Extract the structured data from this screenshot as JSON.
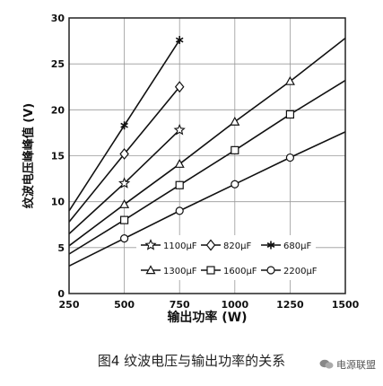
{
  "chart_data": {
    "type": "line",
    "xlabel": "输出功率 (W)",
    "ylabel": "纹波电压峰峰值 (V)",
    "xlim": [
      250,
      1500
    ],
    "ylim": [
      0,
      30
    ],
    "xticks": [
      250,
      500,
      750,
      1000,
      1250,
      1500
    ],
    "yticks": [
      0,
      5,
      10,
      15,
      20,
      25,
      30
    ],
    "grid": true,
    "legend_placement": "bottom-right",
    "series": [
      {
        "name": "1100μF",
        "marker": "star",
        "points": [
          [
            250,
            6.5
          ],
          [
            500,
            12.0
          ],
          [
            750,
            17.8
          ]
        ]
      },
      {
        "name": "820μF",
        "marker": "diamond",
        "points": [
          [
            250,
            7.8
          ],
          [
            500,
            15.2
          ],
          [
            750,
            22.5
          ]
        ]
      },
      {
        "name": "680μF",
        "marker": "asterisk",
        "points": [
          [
            250,
            9.0
          ],
          [
            500,
            18.3
          ],
          [
            750,
            27.6
          ]
        ]
      },
      {
        "name": "1300μF",
        "marker": "triangle",
        "points": [
          [
            250,
            5.2
          ],
          [
            500,
            9.7
          ],
          [
            750,
            14.1
          ],
          [
            1000,
            18.7
          ],
          [
            1250,
            23.1
          ],
          [
            1500,
            27.8
          ]
        ]
      },
      {
        "name": "1600μF",
        "marker": "square",
        "points": [
          [
            250,
            4.3
          ],
          [
            500,
            8.0
          ],
          [
            750,
            11.8
          ],
          [
            1000,
            15.6
          ],
          [
            1250,
            19.5
          ],
          [
            1500,
            23.2
          ]
        ]
      },
      {
        "name": "2200μF",
        "marker": "circle",
        "points": [
          [
            250,
            3.0
          ],
          [
            500,
            6.0
          ],
          [
            750,
            9.0
          ],
          [
            1000,
            11.9
          ],
          [
            1250,
            14.8
          ],
          [
            1500,
            17.6
          ]
        ]
      }
    ]
  },
  "caption": "图4 纹波电压与输出功率的关系",
  "watermark": "电源联盟"
}
